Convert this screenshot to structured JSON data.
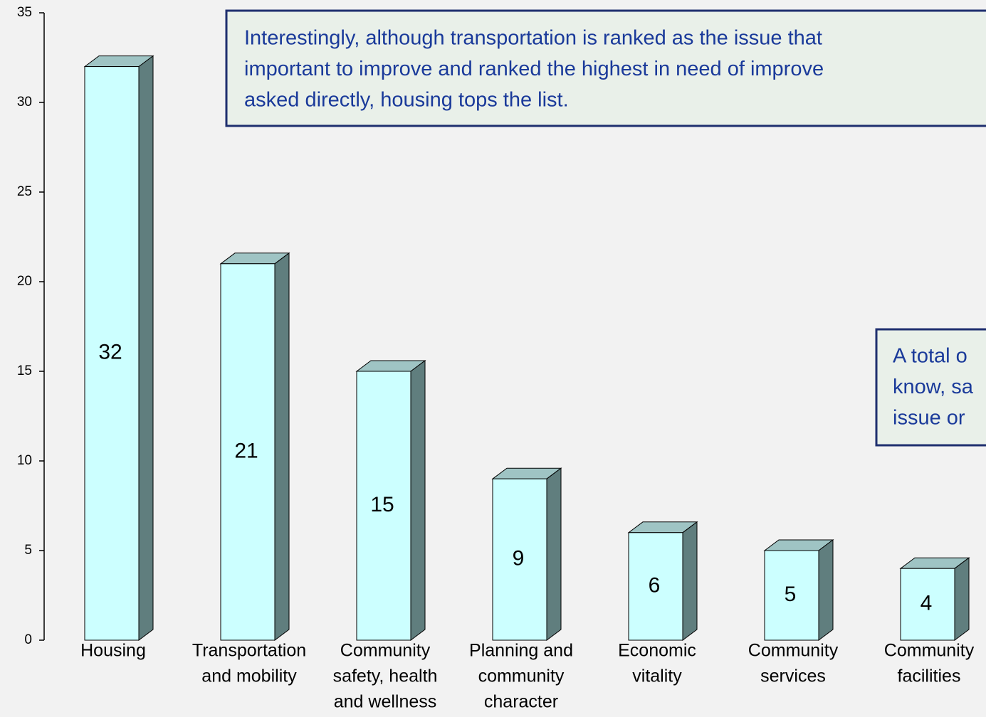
{
  "chart_data": {
    "type": "bar3d",
    "categories": [
      [
        "Housing"
      ],
      [
        "Transportation",
        "and mobility"
      ],
      [
        "Community",
        "safety, health",
        "and wellness"
      ],
      [
        "Planning and",
        "community",
        "character"
      ],
      [
        "Economic",
        "vitality"
      ],
      [
        "Community",
        "services"
      ],
      [
        "Community",
        "facilities"
      ]
    ],
    "values": [
      32,
      21,
      15,
      9,
      6,
      5,
      4
    ],
    "color": "#ccffff",
    "ylim": [
      0,
      35
    ],
    "yticks": [
      0,
      5,
      10,
      15,
      20,
      25,
      30,
      35
    ],
    "annotations": [
      [
        "Interestingly, although transportation is ranked as the issue that",
        "important to improve and ranked the highest in need of improve",
        "asked directly, housing tops the list."
      ],
      [
        "A total o",
        "know, sa",
        "issue or"
      ]
    ]
  }
}
